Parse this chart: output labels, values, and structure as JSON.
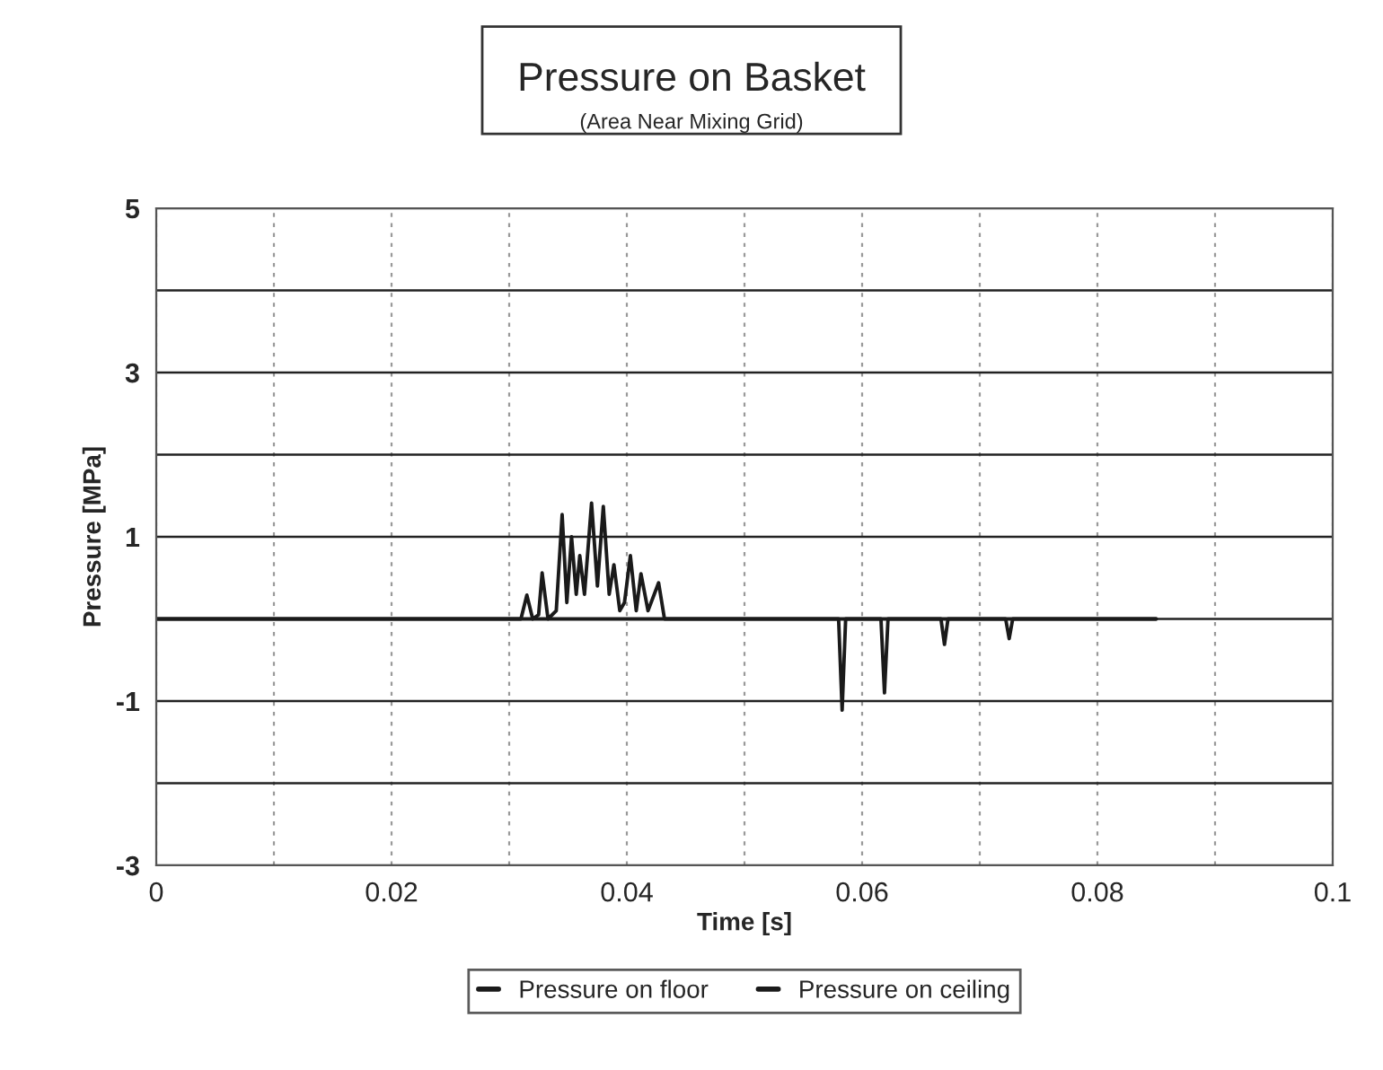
{
  "chart_data": {
    "type": "line",
    "title": "Pressure on Basket",
    "subtitle": "(Area Near Mixing Grid)",
    "xlabel": "Time [s]",
    "ylabel": "Pressure [MPa]",
    "xlim": [
      0,
      0.1
    ],
    "xticks": [
      0,
      {
        "value": 0.01,
        "label": null
      },
      0.02,
      {
        "value": 0.03,
        "label": null
      },
      0.04,
      {
        "value": 0.05,
        "label": null
      },
      0.06,
      {
        "value": 0.07,
        "label": null
      },
      0.08,
      {
        "value": 0.09,
        "label": null
      },
      0.1
    ],
    "ylim": [
      -3,
      5
    ],
    "yticks": [
      -3,
      {
        "value": -2,
        "label": null
      },
      -1,
      {
        "value": 0,
        "label": null
      },
      1,
      {
        "value": 2,
        "label": null
      },
      3,
      {
        "value": 4,
        "label": null
      },
      5
    ],
    "grid": true,
    "legend": "bottom",
    "line_style": "solid",
    "marker": "none",
    "series": [
      {
        "name": "Pressure on floor",
        "color": "#1a1a1a",
        "x": [
          0,
          0.031,
          0.0315,
          0.032,
          0.0325,
          0.0328,
          0.0333,
          0.034,
          0.0345,
          0.0349,
          0.0353,
          0.0357,
          0.036,
          0.0364,
          0.037,
          0.0375,
          0.038,
          0.0385,
          0.0389,
          0.0394,
          0.0398,
          0.0403,
          0.0408,
          0.0412,
          0.0418,
          0.0427,
          0.0432,
          0.085
        ],
        "values": [
          0,
          0,
          0.29,
          0,
          0.05,
          0.56,
          0,
          0.1,
          1.27,
          0.2,
          1.0,
          0.3,
          0.77,
          0.3,
          1.41,
          0.4,
          1.37,
          0.3,
          0.66,
          0.1,
          0.2,
          0.77,
          0.1,
          0.55,
          0.1,
          0.44,
          0,
          0
        ]
      },
      {
        "name": "Pressure on ceiling",
        "color": "#1a1a1a",
        "x": [
          0,
          0.058,
          0.0583,
          0.0586,
          0.0616,
          0.0619,
          0.0622,
          0.0667,
          0.067,
          0.0673,
          0.0722,
          0.0725,
          0.0728,
          0.085
        ],
        "values": [
          0,
          0,
          -1.11,
          0,
          0,
          -0.9,
          0,
          0,
          -0.31,
          0,
          0,
          -0.24,
          0,
          0
        ]
      }
    ]
  }
}
